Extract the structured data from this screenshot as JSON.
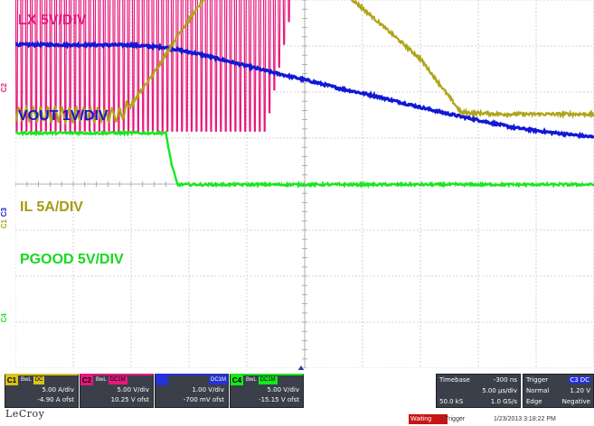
{
  "chart_data": {
    "type": "line",
    "title": "",
    "xlabel": "",
    "ylabel": "",
    "x_divisions": 10,
    "y_divisions": 8,
    "grid": true,
    "time_per_div_us": 5.0,
    "xlim_us": [
      -25.3,
      24.7
    ],
    "series": [
      {
        "name": "LX 5V/DIV",
        "channel": "C2",
        "color": "#e8177d",
        "scale": "5.00 V/div",
        "offset": "10.25 V ofst",
        "x_us": [
          -25.3,
          -15.3,
          -11.3,
          -9.3,
          -7.3,
          -6.0,
          -5.0,
          -4.4,
          -3.8,
          0.0,
          10.0,
          13.0,
          13.3,
          24.7
        ],
        "envelope_high_V": [
          21.5,
          21.5,
          21.3,
          21.0,
          20.5,
          19.8,
          18.8,
          18.3,
          17.8,
          17.9,
          17.9,
          17.9,
          18.9,
          18.9
        ],
        "envelope_low_V": [
          17.9,
          17.9,
          17.9,
          17.9,
          17.9,
          17.9,
          17.9,
          17.9,
          17.9,
          17.9,
          17.9,
          17.9,
          18.9,
          18.9
        ],
        "spike_low_V": [
          -4.5,
          -4.5,
          -4.5,
          -4.5,
          -4.5,
          -4.5,
          -4.5,
          -4.5,
          -4.5,
          17.9,
          17.9,
          17.9,
          18.9,
          18.9
        ]
      },
      {
        "name": "VOUT 1V/DIV",
        "channel": "C3",
        "color": "#1218d6",
        "scale": "1.00 V/div",
        "offset": "-700 mV ofst",
        "x_us": [
          -25.3,
          -15.3,
          -12.3,
          -9.3,
          -6.3,
          -3.3,
          0.0,
          2.7,
          5.7,
          8.7,
          11.7,
          14.7,
          17.7,
          20.7,
          24.7
        ],
        "y_V": [
          3.73,
          3.72,
          3.67,
          3.52,
          3.33,
          3.14,
          2.95,
          2.78,
          2.62,
          2.43,
          2.25,
          2.09,
          1.93,
          1.83,
          1.72
        ]
      },
      {
        "name": "IL 5A/DIV",
        "channel": "C1",
        "color": "#b0a41a",
        "scale": "5.00 A/div",
        "offset": "-4.90 A ofst",
        "x_us": [
          -25.3,
          -16.3,
          -15.3,
          -13.3,
          -11.3,
          -9.3,
          -7.3,
          -5.3,
          -3.8,
          -2.3,
          -1.3,
          0.0,
          4.7,
          9.7,
          13.2,
          16.7,
          24.7
        ],
        "y_A": [
          12.5,
          12.4,
          13.5,
          17.0,
          21.0,
          24.5,
          27.8,
          30.3,
          31.7,
          29.7,
          31.7,
          29.0,
          24.0,
          18.5,
          12.7,
          12.5,
          12.5
        ],
        "ripple_pp_A": 1.7
      },
      {
        "name": "PGOOD 5V/DIV",
        "channel": "C4",
        "color": "#15e81c",
        "scale": "5.00 V/div",
        "offset": "-15.15 V ofst",
        "x_us": [
          -25.3,
          -12.3,
          -11.8,
          -11.3,
          24.7
        ],
        "y_V": [
          20.7,
          20.7,
          17.3,
          15.1,
          15.1
        ]
      }
    ]
  },
  "labels": {
    "lx": "LX 5V/DIV",
    "vout": "VOUT 1V/DIV",
    "il": "IL 5A/DIV",
    "pgood": "PGOOD 5V/DIV",
    "gnd_c2": "C2",
    "gnd_c3": "C3",
    "gnd_c1": "C1",
    "gnd_c4": "C4"
  },
  "channels": [
    {
      "tag": "C1",
      "flag1": "BwL",
      "flag2": "DC",
      "scale": "5.00 A/div",
      "offset": "-4.90 A ofst",
      "color": "#d8c21c"
    },
    {
      "tag": "C2",
      "flag1": "BwL",
      "flag2": "DC1M",
      "scale": "5.00 V/div",
      "offset": "10.25 V ofst",
      "color": "#e8177d"
    },
    {
      "tag": "",
      "flag1": "",
      "flag2": "DC1M",
      "scale": "1.00 V/div",
      "offset": "-700 mV ofst",
      "color": "#2433d6"
    },
    {
      "tag": "C4",
      "flag1": "BwL",
      "flag2": "DC1M",
      "scale": "5.00 V/div",
      "offset": "-15.15 V ofst",
      "color": "#15e81c"
    }
  ],
  "timebase": {
    "label": "Timebase",
    "delay": "-300 ns",
    "per_div": "5.00 µs/div",
    "samples": "50.0 kS",
    "rate": "1.0 GS/s"
  },
  "trigger": {
    "label": "Trigger",
    "source": "C3",
    "coupling": "DC",
    "mode": "Normal",
    "level": "1.20 V",
    "type": "Edge",
    "slope": "Negative"
  },
  "footer": {
    "brand": "LeCroy",
    "status": "Waiting",
    "status_rest": "r Trigger",
    "timestamp": "1/23/2013 3:18:22 PM"
  }
}
